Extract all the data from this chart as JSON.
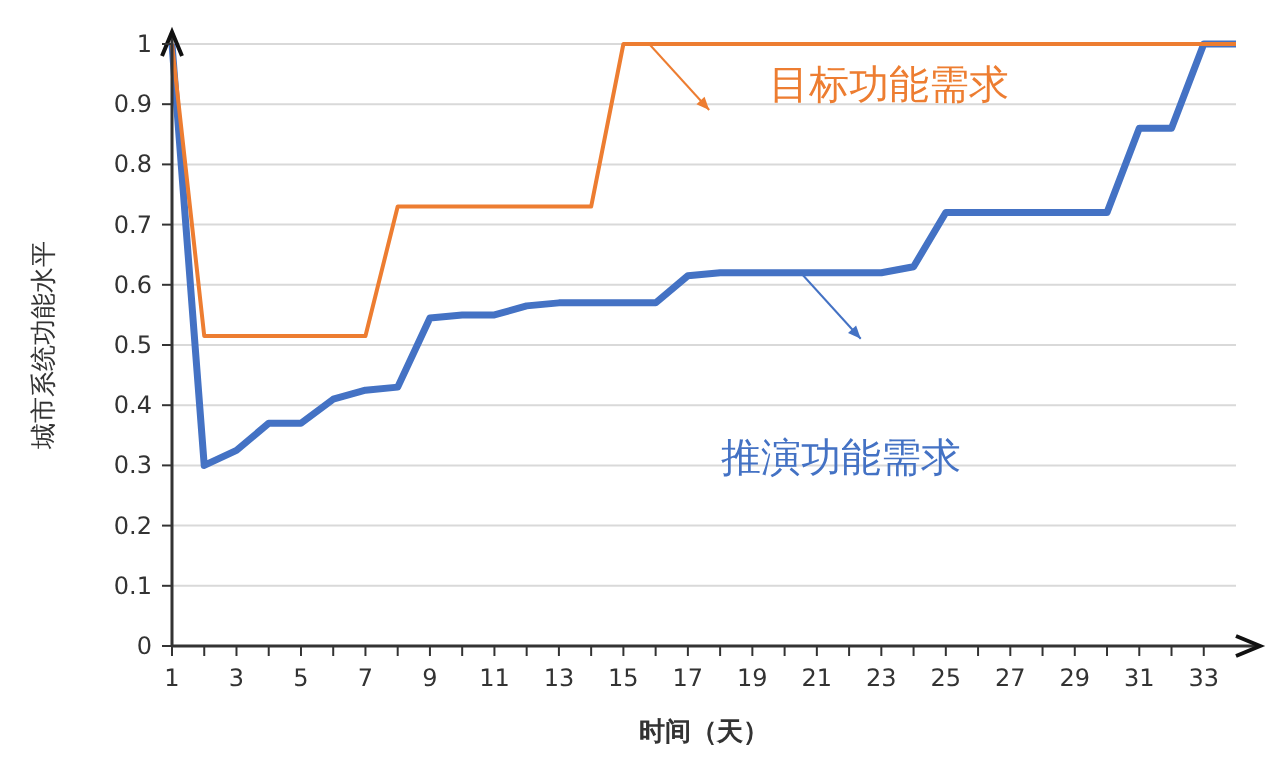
{
  "chart_data": {
    "type": "line",
    "xlabel": "时间（天）",
    "ylabel": "城市系统功能水平",
    "x": [
      1,
      2,
      3,
      4,
      5,
      6,
      7,
      8,
      9,
      10,
      11,
      12,
      13,
      14,
      15,
      16,
      17,
      18,
      19,
      20,
      21,
      22,
      23,
      24,
      25,
      26,
      27,
      28,
      29,
      30,
      31,
      32,
      33,
      34
    ],
    "series": [
      {
        "name": "目标功能需求",
        "color": "#ed7d31",
        "values": [
          1,
          0.515,
          0.515,
          0.515,
          0.515,
          0.515,
          0.515,
          0.73,
          0.73,
          0.73,
          0.73,
          0.73,
          0.73,
          0.73,
          1,
          1,
          1,
          1,
          1,
          1,
          1,
          1,
          1,
          1,
          1,
          1,
          1,
          1,
          1,
          1,
          1,
          1,
          1,
          1
        ]
      },
      {
        "name": "推演功能需求",
        "color": "#4472c4",
        "values": [
          1,
          0.3,
          0.325,
          0.37,
          0.37,
          0.41,
          0.425,
          0.43,
          0.545,
          0.55,
          0.55,
          0.565,
          0.57,
          0.57,
          0.57,
          0.57,
          0.615,
          0.62,
          0.62,
          0.62,
          0.62,
          0.62,
          0.62,
          0.63,
          0.72,
          0.72,
          0.72,
          0.72,
          0.72,
          0.72,
          0.86,
          0.86,
          1,
          1
        ]
      }
    ],
    "xlim": [
      1,
      34
    ],
    "xticks": [
      1,
      {
        "value": 2,
        "label": null
      },
      3,
      {
        "value": 4,
        "label": null
      },
      5,
      {
        "value": 6,
        "label": null
      },
      7,
      {
        "value": 8,
        "label": null
      },
      9,
      {
        "value": 10,
        "label": null
      },
      11,
      {
        "value": 12,
        "label": null
      },
      13,
      {
        "value": 14,
        "label": null
      },
      15,
      {
        "value": 16,
        "label": null
      },
      17,
      {
        "value": 18,
        "label": null
      },
      19,
      {
        "value": 20,
        "label": null
      },
      21,
      {
        "value": 22,
        "label": null
      },
      23,
      {
        "value": 24,
        "label": null
      },
      25,
      {
        "value": 26,
        "label": null
      },
      27,
      {
        "value": 28,
        "label": null
      },
      29,
      {
        "value": 30,
        "label": null
      },
      31,
      {
        "value": 32,
        "label": null
      },
      33
    ],
    "ylim": [
      0,
      1
    ],
    "yticks": [
      0,
      0.1,
      0.2,
      0.3,
      0.4,
      0.5,
      0.6,
      0.7,
      0.8,
      0.9,
      1
    ],
    "grid": "y",
    "marker": "none",
    "line_style": "solid"
  }
}
